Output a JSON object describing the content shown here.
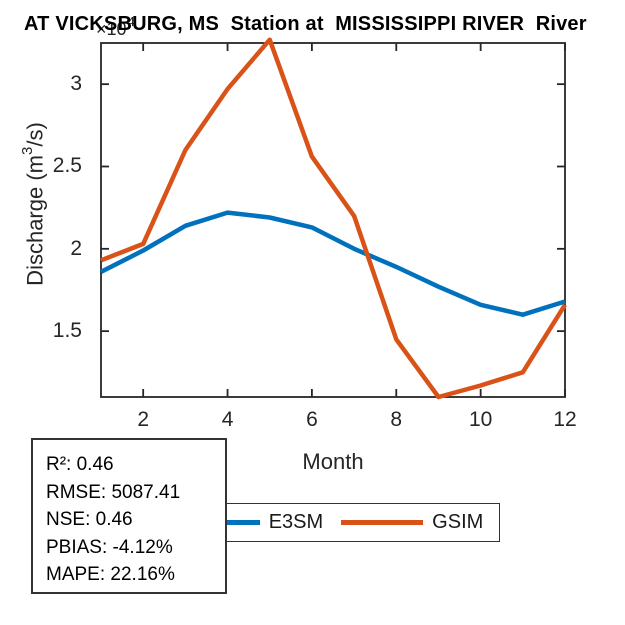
{
  "title": "AT VICKSBURG, MS  Station at  MISSISSIPPI RIVER  River",
  "y_axis_exponent": {
    "base": "×10",
    "power": "4"
  },
  "chart_data": {
    "type": "line",
    "title": "AT VICKSBURG, MS  Station at  MISSISSIPPI RIVER  River",
    "xlabel": "Month",
    "ylabel": "Discharge (m^3/s)",
    "ylabel_parts": {
      "prefix": "Discharge (m",
      "sup": "3",
      "suffix": "/s)"
    },
    "y_units_multiplier": "×10^4",
    "x": [
      1,
      2,
      3,
      4,
      5,
      6,
      7,
      8,
      9,
      10,
      11,
      12
    ],
    "xlim": [
      1,
      12
    ],
    "ylim": [
      1.1,
      3.25
    ],
    "xticks": [
      "2",
      "4",
      "6",
      "8",
      "10",
      "12"
    ],
    "xtick_values": [
      2,
      4,
      6,
      8,
      10,
      12
    ],
    "yticks": [
      "1.5",
      "2",
      "2.5",
      "3"
    ],
    "ytick_values": [
      1.5,
      2,
      2.5,
      3
    ],
    "grid": false,
    "legend_position": "below-horizontal",
    "series": [
      {
        "name": "E3SM",
        "color": "#0072BD",
        "values": [
          1.86,
          1.99,
          2.14,
          2.22,
          2.19,
          2.13,
          2.0,
          1.89,
          1.77,
          1.66,
          1.6,
          1.68
        ]
      },
      {
        "name": "GSIM",
        "color": "#D95319",
        "values": [
          1.93,
          2.03,
          2.6,
          2.97,
          3.27,
          2.56,
          2.2,
          1.45,
          1.1,
          1.17,
          1.25,
          1.66
        ]
      }
    ]
  },
  "legend": {
    "items": [
      {
        "label": "E3SM",
        "color": "#0072BD"
      },
      {
        "label": "GSIM",
        "color": "#D95319"
      }
    ]
  },
  "stats_box": {
    "lines": [
      "R²: 0.46",
      "RMSE: 5087.41",
      "NSE: 0.46",
      "PBIAS: -4.12%",
      "MAPE: 22.16%"
    ]
  },
  "colors": {
    "axis": "#262626",
    "tick_text": "#262626",
    "title_text": "#000000",
    "box_border": "#333333",
    "background": "#ffffff"
  }
}
